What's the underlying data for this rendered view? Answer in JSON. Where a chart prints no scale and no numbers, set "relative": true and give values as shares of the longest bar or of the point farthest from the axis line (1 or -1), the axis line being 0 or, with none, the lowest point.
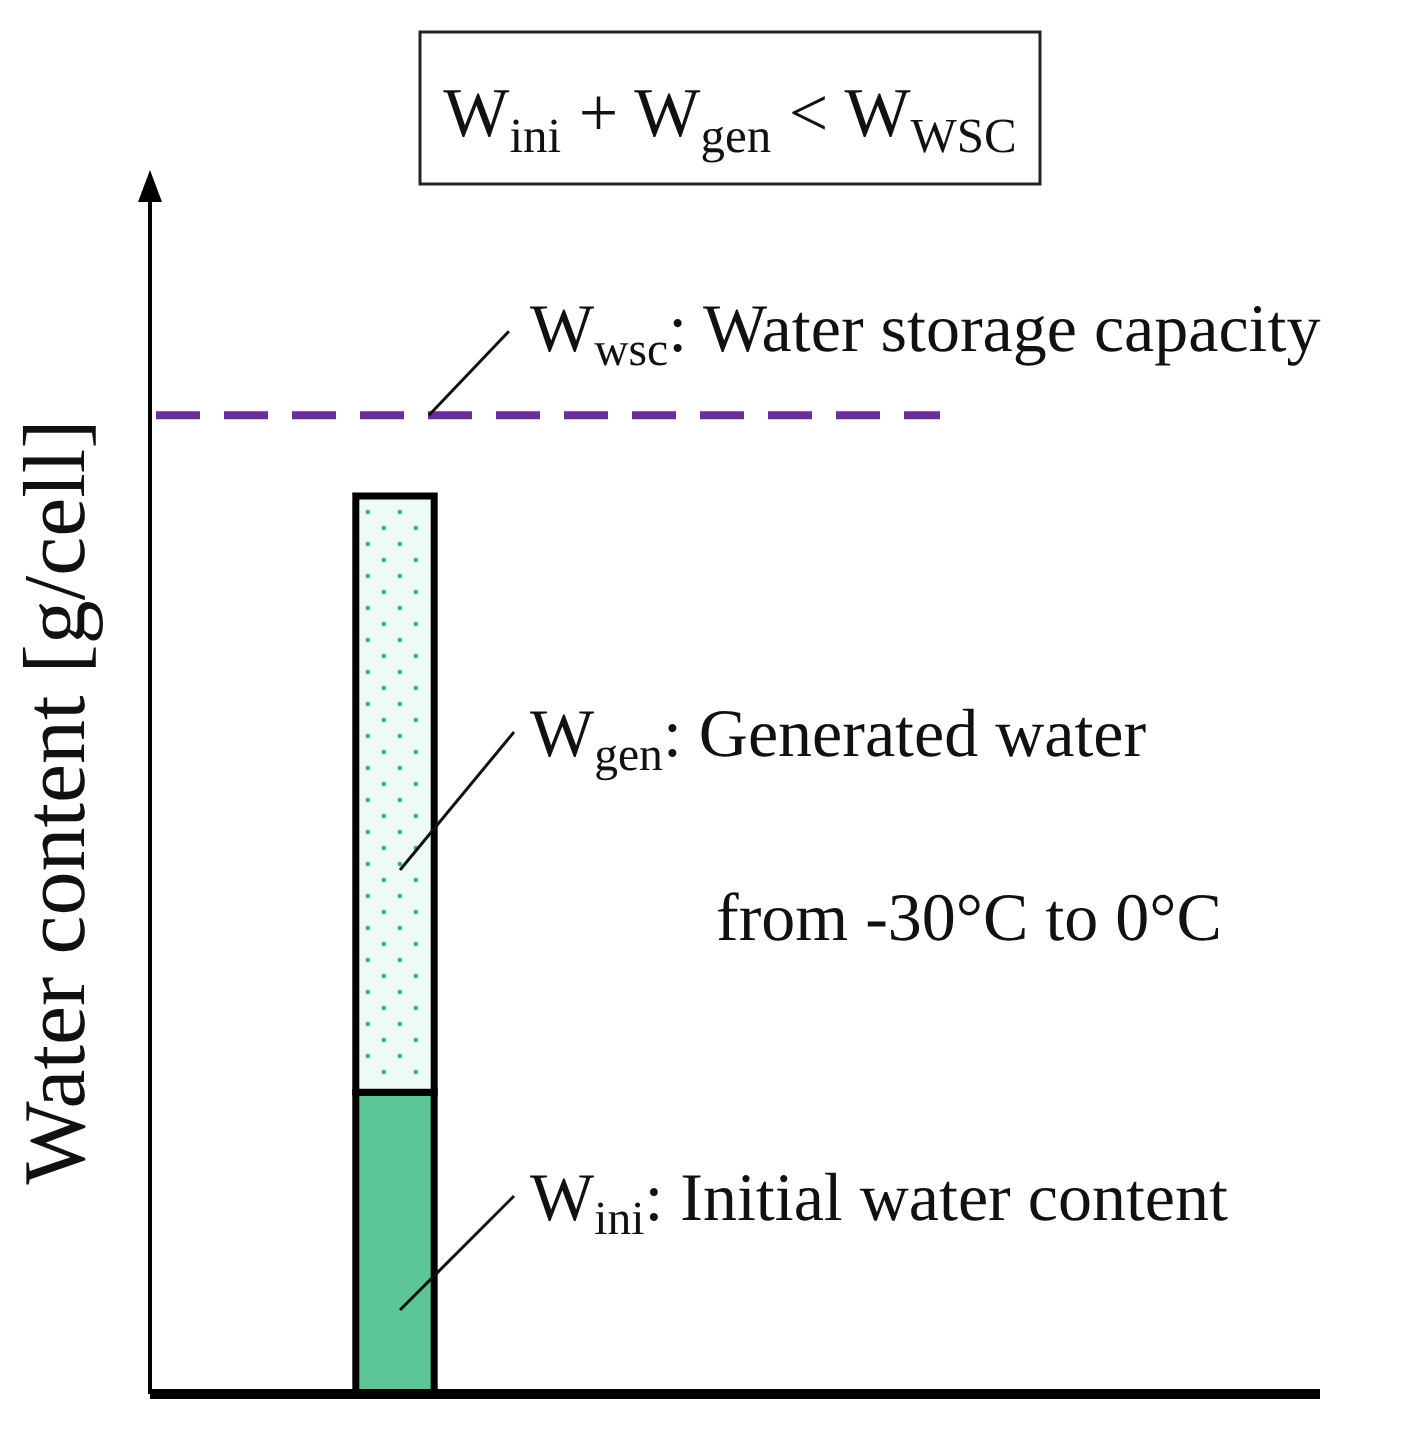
{
  "chart_data": {
    "type": "bar",
    "stacked": true,
    "relative": true,
    "title": "W$_{ini}$ + W$_{gen}$ < W$_{WSC}$",
    "ylabel": "Water content [g/cell]",
    "categories": [
      null
    ],
    "series": [
      {
        "color": "#5cc596",
        "values": [
          0.336
        ]
      },
      {
        "color": "#eefaf6",
        "values": [
          0.664
        ]
      }
    ],
    "ref_lines": [
      {
        "axis": "y",
        "value": 1.09,
        "label": "W$_{wsc}$: Water storage capacity",
        "color": "#6a2d9a",
        "line_style": "dashed"
      }
    ],
    "annotations": [
      "W$_{gen}$: Generated water",
      "from -30°C to 0°C",
      "W$_{ini}$: Initial water content"
    ]
  }
}
